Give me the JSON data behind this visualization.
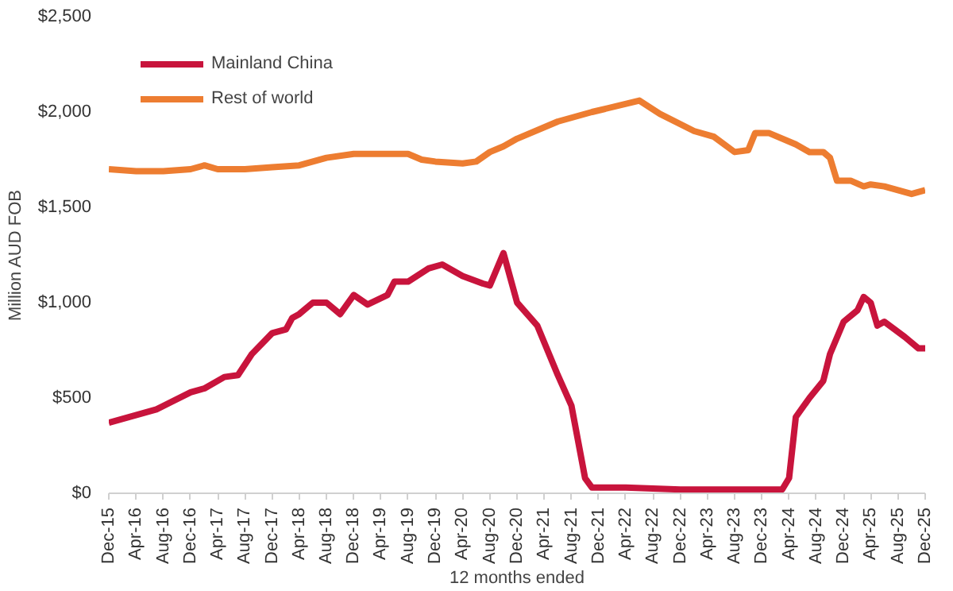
{
  "chart_data": {
    "type": "line",
    "xlabel": "12 months ended",
    "ylabel": "Million AUD FOB",
    "xlim": [
      "2015-12",
      "2025-12"
    ],
    "xticks": [
      {
        "value": "2015-12",
        "label": "Dec-15"
      },
      {
        "value": "2016-04",
        "label": "Apr-16"
      },
      {
        "value": "2016-08",
        "label": "Aug-16"
      },
      {
        "value": "2016-12",
        "label": "Dec-16"
      },
      {
        "value": "2017-04",
        "label": "Apr-17"
      },
      {
        "value": "2017-08",
        "label": "Aug-17"
      },
      {
        "value": "2017-12",
        "label": "Dec-17"
      },
      {
        "value": "2018-04",
        "label": "Apr-18"
      },
      {
        "value": "2018-08",
        "label": "Aug-18"
      },
      {
        "value": "2018-12",
        "label": "Dec-18"
      },
      {
        "value": "2019-04",
        "label": "Apr-19"
      },
      {
        "value": "2019-08",
        "label": "Aug-19"
      },
      {
        "value": "2019-12",
        "label": "Dec-19"
      },
      {
        "value": "2020-04",
        "label": "Apr-20"
      },
      {
        "value": "2020-08",
        "label": "Aug-20"
      },
      {
        "value": "2020-12",
        "label": "Dec-20"
      },
      {
        "value": "2021-04",
        "label": "Apr-21"
      },
      {
        "value": "2021-08",
        "label": "Aug-21"
      },
      {
        "value": "2021-12",
        "label": "Dec-21"
      },
      {
        "value": "2022-04",
        "label": "Apr-22"
      },
      {
        "value": "2022-08",
        "label": "Aug-22"
      },
      {
        "value": "2022-12",
        "label": "Dec-22"
      },
      {
        "value": "2023-04",
        "label": "Apr-23"
      },
      {
        "value": "2023-08",
        "label": "Aug-23"
      },
      {
        "value": "2023-12",
        "label": "Dec-23"
      },
      {
        "value": "2024-04",
        "label": "Apr-24"
      },
      {
        "value": "2024-08",
        "label": "Aug-24"
      },
      {
        "value": "2024-12",
        "label": "Dec-24"
      },
      {
        "value": "2025-04",
        "label": "Apr-25"
      },
      {
        "value": "2025-08",
        "label": "Aug-25"
      },
      {
        "value": "2025-12",
        "label": "Dec-25"
      }
    ],
    "ylim": [
      0,
      2500
    ],
    "yticks": [
      {
        "value": 0,
        "label": "$0"
      },
      {
        "value": 500,
        "label": "$500"
      },
      {
        "value": 1000,
        "label": "$1,000"
      },
      {
        "value": 1500,
        "label": "$1,500"
      },
      {
        "value": 2000,
        "label": "$2,000"
      },
      {
        "value": 2500,
        "label": "$2,500"
      }
    ],
    "grid": false,
    "legend": "top left",
    "marker": "none",
    "line_style": "solid",
    "series": [
      {
        "name": "Mainland China",
        "color": "#c8143c",
        "x": [
          "2015-12",
          "2016-07",
          "2016-12",
          "2017-02",
          "2017-05",
          "2017-07",
          "2017-09",
          "2017-12",
          "2018-02",
          "2018-03",
          "2018-04",
          "2018-06",
          "2018-08",
          "2018-10",
          "2018-12",
          "2019-02",
          "2019-05",
          "2019-06",
          "2019-08",
          "2019-11",
          "2020-01",
          "2020-04",
          "2020-07",
          "2020-08",
          "2020-10",
          "2020-12",
          "2021-03",
          "2021-06",
          "2021-08",
          "2021-10",
          "2021-11",
          "2022-04",
          "2022-12",
          "2023-08",
          "2024-03",
          "2024-04",
          "2024-05",
          "2024-07",
          "2024-09",
          "2024-10",
          "2024-12",
          "2025-02",
          "2025-03",
          "2025-04",
          "2025-05",
          "2025-06",
          "2025-09",
          "2025-11",
          "2025-12"
        ],
        "values": [
          370,
          440,
          530,
          550,
          610,
          620,
          730,
          840,
          860,
          920,
          940,
          1000,
          1000,
          940,
          1040,
          990,
          1040,
          1110,
          1110,
          1180,
          1200,
          1140,
          1100,
          1090,
          1260,
          1000,
          880,
          620,
          460,
          80,
          30,
          30,
          20,
          20,
          20,
          80,
          400,
          500,
          590,
          730,
          900,
          960,
          1030,
          1000,
          880,
          900,
          820,
          760,
          760
        ]
      },
      {
        "name": "Rest of world",
        "color": "#ed7d31",
        "x": [
          "2015-12",
          "2016-04",
          "2016-08",
          "2016-12",
          "2017-02",
          "2017-04",
          "2017-08",
          "2017-12",
          "2018-04",
          "2018-08",
          "2018-12",
          "2019-04",
          "2019-08",
          "2019-10",
          "2019-12",
          "2020-04",
          "2020-06",
          "2020-08",
          "2020-10",
          "2020-12",
          "2021-06",
          "2021-11",
          "2022-06",
          "2022-09",
          "2023-02",
          "2023-05",
          "2023-08",
          "2023-10",
          "2023-11",
          "2024-01",
          "2024-05",
          "2024-07",
          "2024-09",
          "2024-10",
          "2024-11",
          "2025-01",
          "2025-03",
          "2025-04",
          "2025-06",
          "2025-08",
          "2025-10",
          "2025-12"
        ],
        "values": [
          1700,
          1690,
          1690,
          1700,
          1720,
          1700,
          1700,
          1710,
          1720,
          1760,
          1780,
          1780,
          1780,
          1750,
          1740,
          1730,
          1740,
          1790,
          1820,
          1860,
          1950,
          2000,
          2060,
          1990,
          1900,
          1870,
          1790,
          1800,
          1890,
          1890,
          1830,
          1790,
          1790,
          1760,
          1640,
          1640,
          1610,
          1620,
          1610,
          1590,
          1570,
          1590
        ]
      }
    ]
  }
}
